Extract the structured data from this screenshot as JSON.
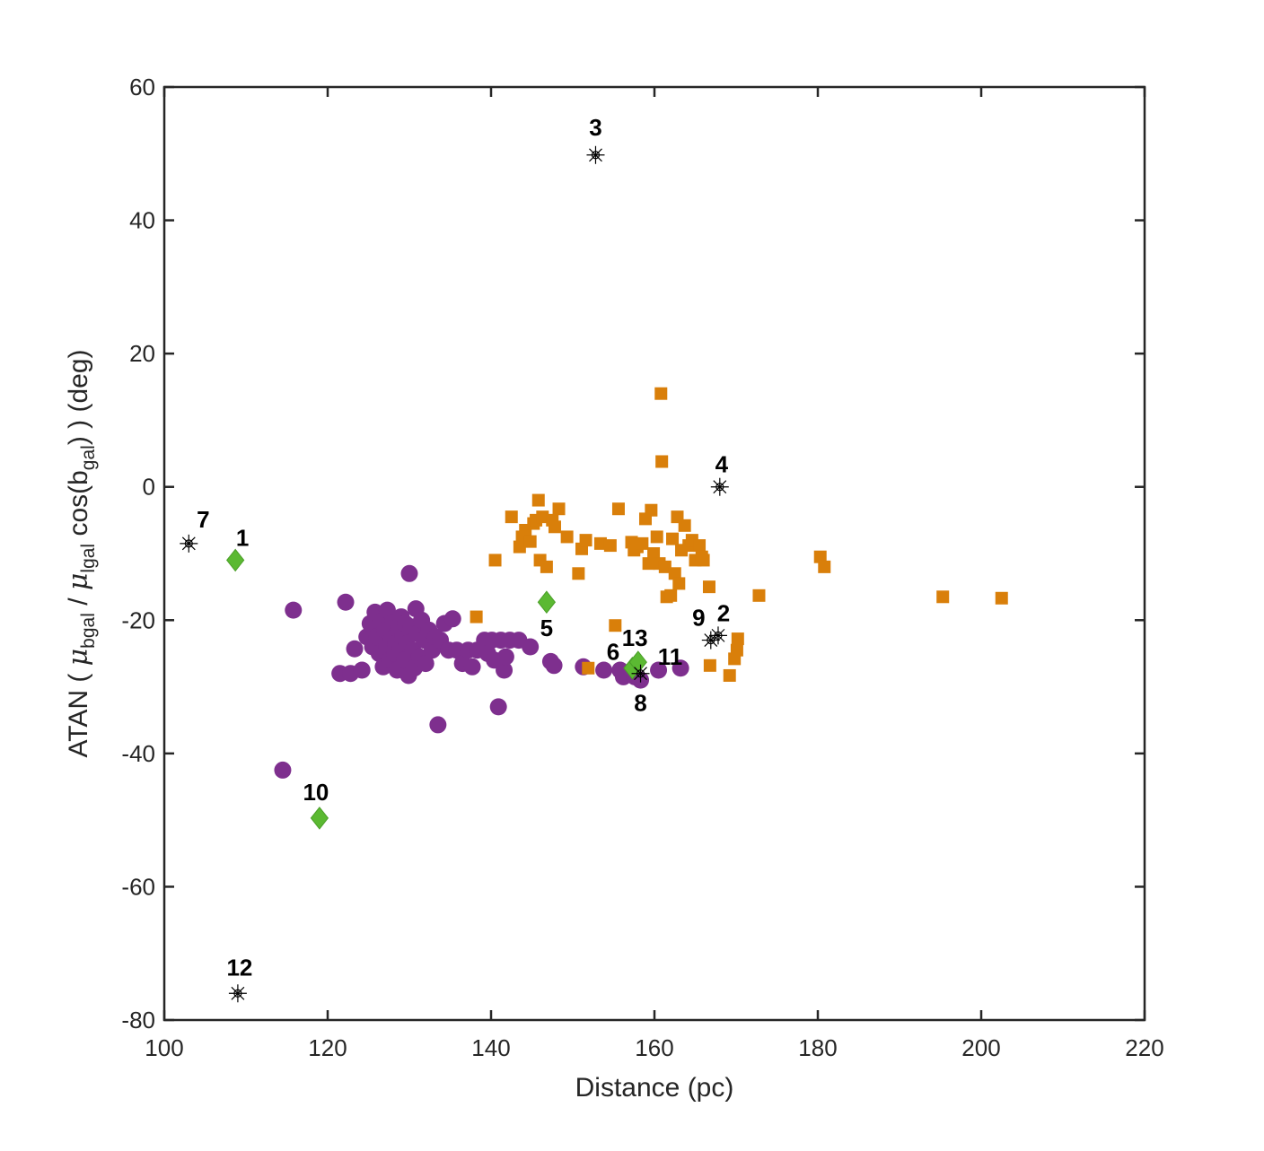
{
  "chart_data": {
    "type": "scatter",
    "xlabel": "Distance (pc)",
    "ylabel": {
      "prefix": "ATAN ( ",
      "mu_b": "μ",
      "sub_b": "bgal",
      "slash": " / ",
      "mu_l": "μ",
      "sub_l": "lgal",
      "cos": " cos(b",
      "sub_cos": "gal",
      "suffix": ") ) (deg)"
    },
    "xlim": [
      100,
      220
    ],
    "ylim": [
      -80,
      60
    ],
    "xticks": [
      "100",
      "120",
      "140",
      "160",
      "180",
      "200",
      "220"
    ],
    "yticks": [
      "-80",
      "-60",
      "-40",
      "-20",
      "0",
      "20",
      "40",
      "60"
    ],
    "grid": false,
    "legend": "none",
    "colors": {
      "purple": "#7e2f8e",
      "orange": "#d97f0a",
      "green": "#5bb932",
      "star": "#000000",
      "axis": "#262626"
    },
    "series": [
      {
        "marker": "circle",
        "color": "#7e2f8e",
        "points": [
          [
            114.5,
            -42.5
          ],
          [
            115.8,
            -18.5
          ],
          [
            121.5,
            -28
          ],
          [
            122.2,
            -17.3
          ],
          [
            122.8,
            -28
          ],
          [
            123.3,
            -24.3
          ],
          [
            124.2,
            -27.5
          ],
          [
            124.8,
            -22.5
          ],
          [
            125.2,
            -20.5
          ],
          [
            125.5,
            -24
          ],
          [
            125.8,
            -18.8
          ],
          [
            126,
            -22.5
          ],
          [
            126.3,
            -25
          ],
          [
            126.5,
            -20.2
          ],
          [
            126.8,
            -27
          ],
          [
            127,
            -21.5
          ],
          [
            127.2,
            -24
          ],
          [
            127.3,
            -18.5
          ],
          [
            127.6,
            -26
          ],
          [
            127.8,
            -22.8
          ],
          [
            128,
            -20.3
          ],
          [
            128.2,
            -25
          ],
          [
            128.3,
            -23.5
          ],
          [
            128.5,
            -27.5
          ],
          [
            128.7,
            -21
          ],
          [
            128.9,
            -24.2
          ],
          [
            129,
            -19.5
          ],
          [
            129.2,
            -22.5
          ],
          [
            129.4,
            -26
          ],
          [
            129.5,
            -20.5
          ],
          [
            129.7,
            -23.5
          ],
          [
            129.9,
            -28.3
          ],
          [
            130,
            -13
          ],
          [
            130.2,
            -21
          ],
          [
            130.4,
            -24.5
          ],
          [
            130.6,
            -27.2
          ],
          [
            130.8,
            -18.3
          ],
          [
            131,
            -22
          ],
          [
            131.2,
            -25.5
          ],
          [
            131.5,
            -20
          ],
          [
            131.8,
            -23
          ],
          [
            132,
            -26.5
          ],
          [
            132.4,
            -21.5
          ],
          [
            132.8,
            -24.5
          ],
          [
            133.2,
            -22.5
          ],
          [
            133.5,
            -35.7
          ],
          [
            133.8,
            -23
          ],
          [
            134.3,
            -20.5
          ],
          [
            134.8,
            -24.5
          ],
          [
            135.3,
            -19.8
          ],
          [
            135.8,
            -24.5
          ],
          [
            136.5,
            -26.5
          ],
          [
            137.2,
            -24.5
          ],
          [
            137.7,
            -27
          ],
          [
            138.3,
            -24.5
          ],
          [
            139.2,
            -23
          ],
          [
            139.6,
            -25
          ],
          [
            140.1,
            -23
          ],
          [
            140.4,
            -26
          ],
          [
            140.9,
            -33
          ],
          [
            141.2,
            -23
          ],
          [
            141.6,
            -27.5
          ],
          [
            141.8,
            -25.5
          ],
          [
            142.3,
            -23
          ],
          [
            143.4,
            -23
          ],
          [
            144.8,
            -24
          ],
          [
            147.3,
            -26.2
          ],
          [
            147.7,
            -26.8
          ],
          [
            151.3,
            -27
          ],
          [
            153.8,
            -27.5
          ],
          [
            155.8,
            -27.5
          ],
          [
            156.2,
            -28.5
          ],
          [
            157.2,
            -28
          ],
          [
            157.6,
            -28.5
          ],
          [
            158.3,
            -29
          ],
          [
            160.5,
            -27.5
          ],
          [
            163.2,
            -27.2
          ]
        ]
      },
      {
        "marker": "square",
        "color": "#d97f0a",
        "points": [
          [
            138.2,
            -19.5
          ],
          [
            140.5,
            -11
          ],
          [
            142.5,
            -4.5
          ],
          [
            143.5,
            -9
          ],
          [
            143.8,
            -7.5
          ],
          [
            144.2,
            -6.5
          ],
          [
            144.8,
            -8.2
          ],
          [
            145.2,
            -5.5
          ],
          [
            145.5,
            -5
          ],
          [
            145.8,
            -2
          ],
          [
            146,
            -11
          ],
          [
            146.3,
            -4.5
          ],
          [
            146.8,
            -12
          ],
          [
            147.5,
            -5
          ],
          [
            147.8,
            -6
          ],
          [
            148.3,
            -3.3
          ],
          [
            149.3,
            -7.5
          ],
          [
            150.7,
            -13
          ],
          [
            151.1,
            -9.3
          ],
          [
            151.6,
            -8
          ],
          [
            151.9,
            -27.2
          ],
          [
            153.4,
            -8.5
          ],
          [
            154.6,
            -8.8
          ],
          [
            155.2,
            -20.8
          ],
          [
            155.6,
            -3.3
          ],
          [
            157.2,
            -8.3
          ],
          [
            157.5,
            -9.5
          ],
          [
            157.9,
            -9
          ],
          [
            158.5,
            -8.5
          ],
          [
            158.9,
            -4.8
          ],
          [
            159.3,
            -11.5
          ],
          [
            159.6,
            -3.5
          ],
          [
            159.9,
            -10
          ],
          [
            160.3,
            -7.5
          ],
          [
            160.6,
            -11.5
          ],
          [
            160.9,
            3.8
          ],
          [
            160.8,
            14
          ],
          [
            161.3,
            -12
          ],
          [
            161.5,
            -16.5
          ],
          [
            162,
            -16.3
          ],
          [
            162.2,
            -7.8
          ],
          [
            162.5,
            -13
          ],
          [
            162.8,
            -4.5
          ],
          [
            163,
            -14.5
          ],
          [
            163.3,
            -9.5
          ],
          [
            163.7,
            -5.8
          ],
          [
            164.2,
            -8.8
          ],
          [
            164.6,
            -8
          ],
          [
            165,
            -11
          ],
          [
            165.5,
            -8.8
          ],
          [
            165.8,
            -10.5
          ],
          [
            166,
            -11
          ],
          [
            166.7,
            -15
          ],
          [
            166.8,
            -26.8
          ],
          [
            169.2,
            -28.3
          ],
          [
            169.8,
            -25.8
          ],
          [
            170.1,
            -24.5
          ],
          [
            170.2,
            -22.8
          ],
          [
            172.8,
            -16.3
          ],
          [
            180.3,
            -10.5
          ],
          [
            180.8,
            -12
          ],
          [
            195.3,
            -16.5
          ],
          [
            202.5,
            -16.7
          ]
        ]
      },
      {
        "marker": "diamond",
        "color": "#5bb932",
        "points": [
          [
            108.7,
            -11
          ],
          [
            146.8,
            -17.3
          ],
          [
            119,
            -49.7
          ],
          [
            157.3,
            -27.2
          ],
          [
            158,
            -26.3
          ]
        ]
      },
      {
        "marker": "star",
        "color": "#000000",
        "points": [
          [
            103,
            -8.5
          ],
          [
            152.8,
            49.8
          ],
          [
            168,
            0
          ],
          [
            109,
            -76
          ],
          [
            158.3,
            -28
          ],
          [
            166.9,
            -23
          ],
          [
            167.8,
            -22.3
          ]
        ]
      }
    ],
    "annotations": [
      {
        "text": "1",
        "x": 108.7,
        "y": -11,
        "dx": 8,
        "dy": -16
      },
      {
        "text": "2",
        "x": 167.8,
        "y": -22.3,
        "dx": 6,
        "dy": -16
      },
      {
        "text": "3",
        "x": 152.8,
        "y": 49.8,
        "dx": 0,
        "dy": -22
      },
      {
        "text": "4",
        "x": 168,
        "y": 0,
        "dx": 2,
        "dy": -16
      },
      {
        "text": "5",
        "x": 146.8,
        "y": -17.3,
        "dx": 0,
        "dy": 38
      },
      {
        "text": "6",
        "x": 155.6,
        "y": -26.5,
        "dx": -6,
        "dy": -4
      },
      {
        "text": "7",
        "x": 103,
        "y": -8.5,
        "dx": 16,
        "dy": -18
      },
      {
        "text": "8",
        "x": 158.3,
        "y": -28,
        "dx": 0,
        "dy": 42
      },
      {
        "text": "9",
        "x": 166.3,
        "y": -23,
        "dx": -8,
        "dy": -16
      },
      {
        "text": "10",
        "x": 119,
        "y": -49.7,
        "dx": -4,
        "dy": -20
      },
      {
        "text": "11",
        "x": 159.5,
        "y": -27.2,
        "dx": 22,
        "dy": -4
      },
      {
        "text": "12",
        "x": 109,
        "y": -76,
        "dx": 2,
        "dy": -20
      },
      {
        "text": "13",
        "x": 157.6,
        "y": -26,
        "dx": 0,
        "dy": -16
      }
    ]
  }
}
